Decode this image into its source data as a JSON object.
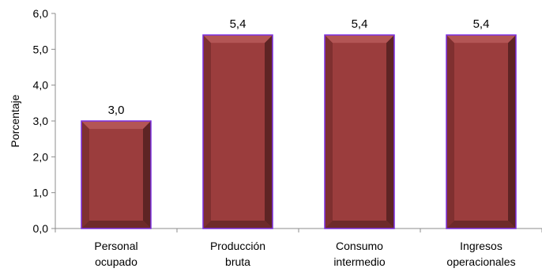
{
  "chart_data": {
    "type": "bar",
    "categories": [
      [
        "Personal",
        "ocupado"
      ],
      [
        "Producción",
        "bruta"
      ],
      [
        "Consumo",
        "intermedio"
      ],
      [
        "Ingresos",
        "operacionales"
      ]
    ],
    "values": [
      3.0,
      5.4,
      5.4,
      5.4
    ],
    "data_labels": [
      "3,0",
      "5,4",
      "5,4",
      "5,4"
    ],
    "title": "",
    "xlabel": "",
    "ylabel": "Porcentaje",
    "ylim": [
      0,
      6
    ],
    "yticks": [
      0,
      1,
      2,
      3,
      4,
      5,
      6
    ],
    "ytick_labels": [
      "0,0",
      "1,0",
      "2,0",
      "3,0",
      "4,0",
      "5,0",
      "6,0"
    ],
    "grid": false,
    "legend": "none",
    "colors": {
      "bar_face": "#9b3d3d",
      "bar_side_dark": "#5e2424",
      "bar_side_light": "#7f3030",
      "bar_top": "#b35555",
      "bar_bottom": "#6d2a2a",
      "bar_outline": "#7b2fe0",
      "axis": "#8c8c8c"
    }
  }
}
